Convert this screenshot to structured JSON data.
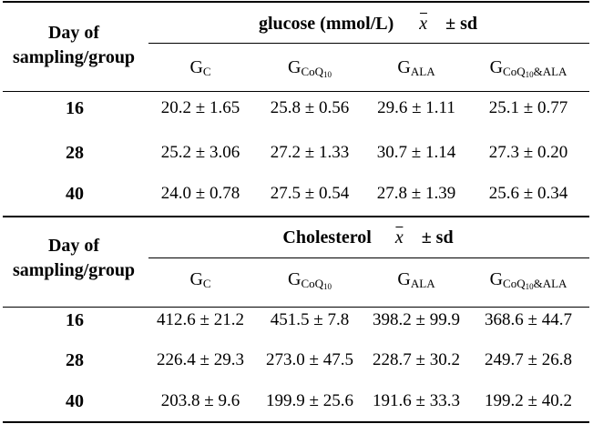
{
  "tables": [
    {
      "row_header": [
        "Day of",
        "sampling/group"
      ],
      "title": "glucose (mmol/L)",
      "mean_symbol": "x",
      "sd_label": "± sd",
      "groups": [
        {
          "main": "G",
          "sub": "C",
          "subsub": "",
          "suffix": ""
        },
        {
          "main": "G",
          "sub": "CoQ",
          "subsub": "10",
          "suffix": ""
        },
        {
          "main": "G",
          "sub": "ALA",
          "subsub": "",
          "suffix": ""
        },
        {
          "main": "G",
          "sub": "CoQ",
          "subsub": "10",
          "suffix": "&ALA"
        }
      ],
      "rows": [
        {
          "day": "16",
          "values": [
            "20.2 ± 1.65",
            "25.8 ± 0.56",
            "29.6 ± 1.11",
            "25.1 ± 0.77"
          ]
        },
        {
          "day": "28",
          "values": [
            "25.2 ± 3.06",
            "27.2 ± 1.33",
            "30.7 ± 1.14",
            "27.3 ± 0.20"
          ]
        },
        {
          "day": "40",
          "values": [
            "24.0 ± 0.78",
            "27.5 ± 0.54",
            "27.8 ± 1.39",
            "25.6 ± 0.34"
          ]
        }
      ]
    },
    {
      "row_header": [
        "Day of",
        "sampling/group"
      ],
      "title": "Cholesterol",
      "mean_symbol": "x",
      "sd_label": "± sd",
      "groups": [
        {
          "main": "G",
          "sub": "C",
          "subsub": "",
          "suffix": ""
        },
        {
          "main": "G",
          "sub": "CoQ",
          "subsub": "10",
          "suffix": ""
        },
        {
          "main": "G",
          "sub": "ALA",
          "subsub": "",
          "suffix": ""
        },
        {
          "main": "G",
          "sub": "CoQ",
          "subsub": "10",
          "suffix": "&ALA"
        }
      ],
      "rows": [
        {
          "day": "16",
          "values": [
            "412.6 ± 21.2",
            "451.5 ± 7.8",
            "398.2 ± 99.9",
            "368.6 ± 44.7"
          ]
        },
        {
          "day": "28",
          "values": [
            "226.4 ± 29.3",
            "273.0 ± 47.5",
            "228.7 ± 30.2",
            "249.7 ± 26.8"
          ]
        },
        {
          "day": "40",
          "values": [
            "203.8 ± 9.6",
            "199.9 ± 25.6",
            "191.6 ± 33.3",
            "199.2 ± 40.2"
          ]
        }
      ]
    }
  ]
}
